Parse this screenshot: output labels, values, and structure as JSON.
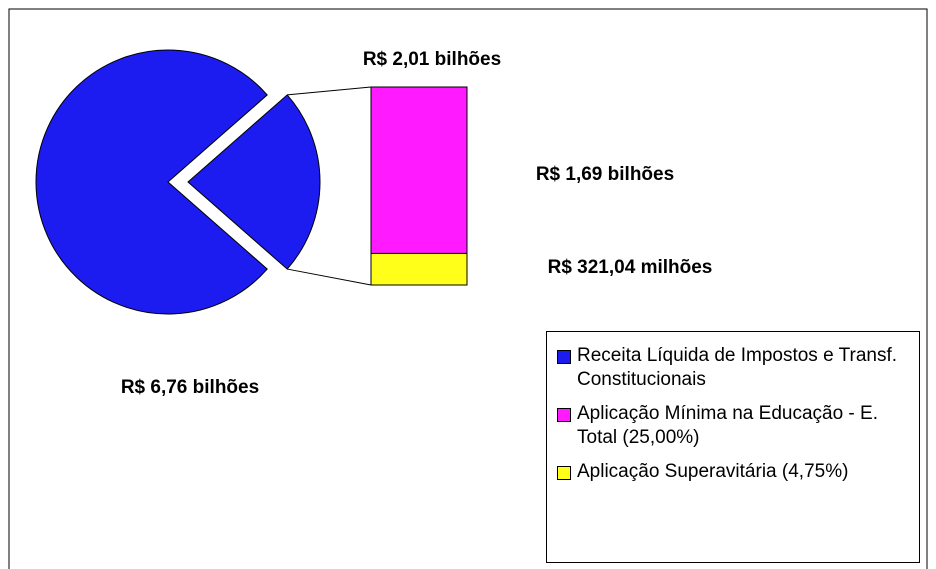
{
  "chart_data": {
    "type": "pie-of-bar",
    "categories": [
      "Receita Líquida de Impostos e Transf. Constitucionais",
      "Aplicação Mínima na Educação - E. Total (25,00%)",
      "Aplicação Superavitária (4,75%)"
    ],
    "values": [
      6.76,
      1.69,
      0.32104
    ],
    "value_labels": [
      "R$ 6,76 bilhões",
      "R$ 1,69 bilhões",
      "R$ 321,04 milhões"
    ],
    "bar_total_label": "R$ 2,01 bilhões",
    "colors": [
      "#1c1cf0",
      "#ff1aff",
      "#ffff1a"
    ]
  }
}
